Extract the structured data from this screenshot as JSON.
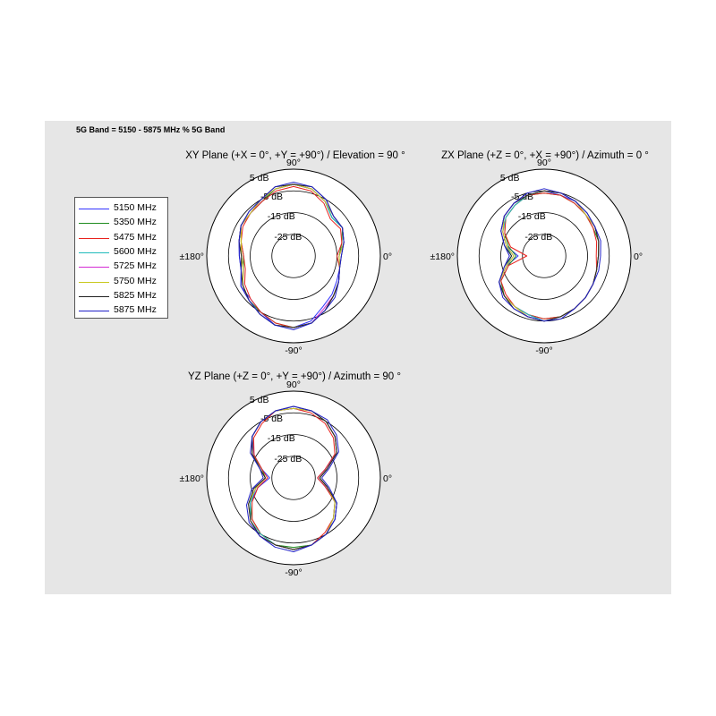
{
  "figure": {
    "title": "5G Band = 5150 - 5875 MHz % 5G Band"
  },
  "legend": [
    {
      "label": "5150 MHz",
      "color": "#3333ff"
    },
    {
      "label": "5350 MHz",
      "color": "#1e8c1e"
    },
    {
      "label": "5475 MHz",
      "color": "#e8231e"
    },
    {
      "label": "5600 MHz",
      "color": "#20bcbc"
    },
    {
      "label": "5725 MHz",
      "color": "#d42bd4"
    },
    {
      "label": "5750 MHz",
      "color": "#c8c81e"
    },
    {
      "label": "5825 MHz",
      "color": "#222222"
    },
    {
      "label": "5875 MHz",
      "color": "#2020c8"
    }
  ],
  "chart_data": [
    {
      "type": "polar",
      "title": "XY Plane (+X = 0°, +Y = +90°) / Elevation = 90 °",
      "angle_labels": {
        "top": "90°",
        "right": "0°",
        "bottom": "-90°",
        "left": "±180°"
      },
      "radial_labels": [
        "5 dB",
        "-5 dB",
        "-15 dB",
        "-25 dB"
      ],
      "radial_ticks_db": [
        5,
        -5,
        -15,
        -25
      ],
      "r_range_db": [
        -35,
        5
      ],
      "angle_deg": [
        0,
        15,
        30,
        45,
        60,
        75,
        90,
        105,
        120,
        135,
        150,
        165,
        180,
        195,
        210,
        225,
        240,
        255,
        270,
        285,
        300,
        315,
        330,
        345
      ],
      "series": [
        {
          "name": "5150 MHz",
          "values_db": [
            -14,
            -11,
            -9,
            -10,
            -6,
            -3,
            -2,
            -3,
            -6,
            -7,
            -7,
            -9,
            -10,
            -10,
            -7,
            -7,
            -5,
            -2,
            -2,
            -4,
            -8,
            -10,
            -12,
            -13
          ]
        },
        {
          "name": "5350 MHz",
          "values_db": [
            -14,
            -12,
            -9,
            -10,
            -6,
            -3,
            -2,
            -3,
            -6,
            -7,
            -7,
            -10,
            -12,
            -11,
            -8,
            -6,
            -5,
            -3,
            -2,
            -3,
            -6,
            -9,
            -11,
            -13
          ]
        },
        {
          "name": "5475 MHz",
          "values_db": [
            -15,
            -12,
            -10,
            -11,
            -7,
            -4,
            -3,
            -4,
            -6,
            -7,
            -8,
            -10,
            -12,
            -12,
            -9,
            -7,
            -5,
            -3,
            -2,
            -3,
            -6,
            -9,
            -11,
            -13
          ]
        },
        {
          "name": "5600 MHz",
          "values_db": [
            -14,
            -11,
            -9,
            -10,
            -6,
            -3,
            -2,
            -3,
            -5,
            -7,
            -7,
            -9,
            -11,
            -11,
            -8,
            -6,
            -4,
            -2,
            -2,
            -3,
            -6,
            -9,
            -11,
            -13
          ]
        },
        {
          "name": "5725 MHz",
          "values_db": [
            -14,
            -11,
            -9,
            -9,
            -6,
            -3,
            -2,
            -3,
            -5,
            -7,
            -7,
            -9,
            -11,
            -11,
            -8,
            -6,
            -4,
            -2,
            -2,
            -3,
            -7,
            -9,
            -11,
            -13
          ]
        },
        {
          "name": "5750 MHz",
          "values_db": [
            -14,
            -11,
            -9,
            -9,
            -6,
            -3,
            -2,
            -3,
            -5,
            -7,
            -7,
            -10,
            -11,
            -11,
            -8,
            -6,
            -4,
            -2,
            -2,
            -3,
            -6,
            -9,
            -11,
            -13
          ]
        },
        {
          "name": "5825 MHz",
          "values_db": [
            -13,
            -11,
            -9,
            -9,
            -5,
            -2,
            -2,
            -2,
            -5,
            -6,
            -7,
            -9,
            -11,
            -10,
            -8,
            -6,
            -4,
            -2,
            -2,
            -3,
            -6,
            -9,
            -11,
            -13
          ]
        },
        {
          "name": "5875 MHz",
          "values_db": [
            -13,
            -11,
            -9,
            -9,
            -5,
            -2,
            -1,
            -2,
            -5,
            -6,
            -7,
            -9,
            -10,
            -10,
            -7,
            -6,
            -4,
            -2,
            -1,
            -3,
            -6,
            -8,
            -11,
            -13
          ]
        }
      ]
    },
    {
      "type": "polar",
      "title": "ZX Plane (+Z = 0°, +X = +90°) / Azimuth = 0 °",
      "angle_labels": {
        "top": "90°",
        "right": "0°",
        "bottom": "-90°",
        "left": "±180°"
      },
      "radial_labels": [
        "5 dB",
        "-5 dB",
        "-15 dB",
        "-25 dB"
      ],
      "radial_ticks_db": [
        5,
        -5,
        -15,
        -25
      ],
      "r_range_db": [
        -35,
        5
      ],
      "angle_deg": [
        0,
        15,
        30,
        45,
        60,
        75,
        90,
        105,
        120,
        135,
        150,
        165,
        180,
        195,
        210,
        225,
        240,
        255,
        270,
        285,
        300,
        315,
        330,
        345
      ],
      "series": [
        {
          "name": "5150 MHz",
          "values_db": [
            -10,
            -9,
            -8,
            -8,
            -6,
            -6,
            -5,
            -6,
            -7,
            -9,
            -13,
            -17,
            -23,
            -17,
            -11,
            -9,
            -8,
            -7,
            -5,
            -6,
            -7,
            -8,
            -9,
            -10
          ]
        },
        {
          "name": "5350 MHz",
          "values_db": [
            -10,
            -9,
            -9,
            -8,
            -7,
            -6,
            -6,
            -6,
            -8,
            -10,
            -14,
            -18,
            -22,
            -18,
            -12,
            -9,
            -8,
            -7,
            -6,
            -6,
            -7,
            -8,
            -9,
            -10
          ]
        },
        {
          "name": "5475 MHz",
          "values_db": [
            -11,
            -10,
            -9,
            -8,
            -7,
            -6,
            -6,
            -6,
            -8,
            -10,
            -14,
            -19,
            -27,
            -18,
            -12,
            -10,
            -8,
            -7,
            -6,
            -6,
            -7,
            -8,
            -9,
            -10
          ]
        },
        {
          "name": "5600 MHz",
          "values_db": [
            -10,
            -9,
            -8,
            -8,
            -6,
            -5,
            -5,
            -6,
            -8,
            -10,
            -13,
            -17,
            -20,
            -17,
            -11,
            -9,
            -8,
            -7,
            -5,
            -6,
            -7,
            -8,
            -9,
            -10
          ]
        },
        {
          "name": "5725 MHz",
          "values_db": [
            -10,
            -9,
            -8,
            -8,
            -6,
            -5,
            -5,
            -6,
            -7,
            -9,
            -13,
            -17,
            -21,
            -17,
            -11,
            -9,
            -8,
            -6,
            -5,
            -6,
            -7,
            -8,
            -9,
            -10
          ]
        },
        {
          "name": "5750 MHz",
          "values_db": [
            -10,
            -9,
            -8,
            -8,
            -6,
            -5,
            -5,
            -6,
            -7,
            -9,
            -13,
            -17,
            -21,
            -17,
            -11,
            -9,
            -8,
            -6,
            -5,
            -6,
            -7,
            -8,
            -9,
            -10
          ]
        },
        {
          "name": "5825 MHz",
          "values_db": [
            -10,
            -9,
            -8,
            -7,
            -6,
            -5,
            -5,
            -6,
            -7,
            -9,
            -12,
            -16,
            -20,
            -16,
            -11,
            -9,
            -7,
            -6,
            -5,
            -6,
            -7,
            -8,
            -9,
            -10
          ]
        },
        {
          "name": "5875 MHz",
          "values_db": [
            -9,
            -8,
            -8,
            -7,
            -6,
            -5,
            -4,
            -5,
            -7,
            -9,
            -12,
            -16,
            -19,
            -16,
            -11,
            -8,
            -7,
            -6,
            -5,
            -5,
            -7,
            -8,
            -9,
            -9
          ]
        }
      ]
    },
    {
      "type": "polar",
      "title": "YZ Plane (+Z = 0°, +Y = +90°) / Azimuth = 90 °",
      "angle_labels": {
        "top": "90°",
        "right": "0°",
        "bottom": "-90°",
        "left": "±180°"
      },
      "radial_labels": [
        "5 dB",
        "-5 dB",
        "-15 dB",
        "-25 dB"
      ],
      "radial_ticks_db": [
        5,
        -5,
        -15,
        -25
      ],
      "r_range_db": [
        -35,
        5
      ],
      "angle_deg": [
        0,
        15,
        30,
        45,
        60,
        75,
        90,
        105,
        120,
        135,
        150,
        165,
        180,
        195,
        210,
        225,
        240,
        255,
        270,
        285,
        300,
        315,
        330,
        345
      ],
      "series": [
        {
          "name": "5150 MHz",
          "values_db": [
            -24,
            -20,
            -12,
            -8,
            -5,
            -3,
            -3,
            -3,
            -5,
            -8,
            -14,
            -20,
            -24,
            -18,
            -12,
            -7,
            -4,
            -3,
            -2,
            -3,
            -5,
            -8,
            -12,
            -20
          ]
        },
        {
          "name": "5350 MHz",
          "values_db": [
            -23,
            -19,
            -12,
            -8,
            -5,
            -3,
            -3,
            -3,
            -5,
            -8,
            -13,
            -20,
            -22,
            -17,
            -12,
            -8,
            -5,
            -3,
            -3,
            -3,
            -5,
            -9,
            -13,
            -19
          ]
        },
        {
          "name": "5475 MHz",
          "values_db": [
            -24,
            -20,
            -13,
            -9,
            -6,
            -4,
            -3,
            -3,
            -6,
            -9,
            -14,
            -20,
            -23,
            -18,
            -13,
            -8,
            -5,
            -3,
            -2,
            -3,
            -6,
            -9,
            -13,
            -20
          ]
        },
        {
          "name": "5600 MHz",
          "values_db": [
            -23,
            -19,
            -12,
            -8,
            -5,
            -3,
            -3,
            -3,
            -5,
            -8,
            -13,
            -19,
            -22,
            -17,
            -12,
            -7,
            -5,
            -3,
            -2,
            -3,
            -5,
            -9,
            -13,
            -19
          ]
        },
        {
          "name": "5725 MHz",
          "values_db": [
            -23,
            -19,
            -12,
            -8,
            -5,
            -3,
            -3,
            -3,
            -5,
            -8,
            -13,
            -19,
            -22,
            -17,
            -11,
            -7,
            -4,
            -3,
            -2,
            -3,
            -5,
            -9,
            -13,
            -19
          ]
        },
        {
          "name": "5750 MHz",
          "values_db": [
            -23,
            -19,
            -12,
            -8,
            -5,
            -3,
            -3,
            -3,
            -5,
            -8,
            -13,
            -19,
            -22,
            -17,
            -11,
            -7,
            -4,
            -3,
            -2,
            -3,
            -5,
            -9,
            -13,
            -19
          ]
        },
        {
          "name": "5825 MHz",
          "values_db": [
            -23,
            -19,
            -12,
            -8,
            -5,
            -3,
            -2,
            -3,
            -5,
            -8,
            -13,
            -19,
            -22,
            -16,
            -11,
            -7,
            -4,
            -3,
            -2,
            -3,
            -5,
            -8,
            -12,
            -19
          ]
        },
        {
          "name": "5875 MHz",
          "values_db": [
            -22,
            -18,
            -11,
            -7,
            -4,
            -3,
            -2,
            -3,
            -5,
            -8,
            -12,
            -19,
            -21,
            -15,
            -10,
            -6,
            -4,
            -2,
            -1,
            -3,
            -5,
            -8,
            -12,
            -18
          ]
        }
      ]
    }
  ]
}
